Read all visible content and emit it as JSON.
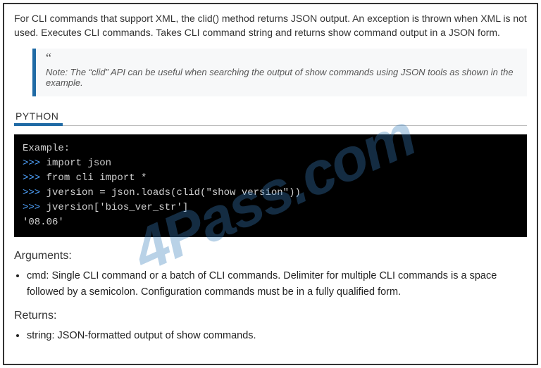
{
  "intro": "For CLI commands that support XML, the clid() method returns JSON output. An exception is thrown when XML is not used. Executes CLI commands. Takes CLI command string and returns show command output in a JSON form.",
  "note": {
    "quote_mark": "“",
    "text": "Note: The “clid” API can be useful when searching the output of show commands using JSON tools as shown in the example."
  },
  "python_label": "PYTHON",
  "code": {
    "line1": "Example:",
    "p2": ">>> ",
    "l2": "import json",
    "p3": ">>> ",
    "l3": "from cli import *",
    "p4": ">>> ",
    "l4": "jversion = json.loads(clid(\"show version\"))",
    "p5": ">>> ",
    "l5": "jversion['bios_ver_str']",
    "l6": "'08.06'"
  },
  "arguments": {
    "heading": "Arguments:",
    "item": "cmd: Single CLI command or a batch of CLI commands. Delimiter for multiple CLI commands is a space followed by a semicolon. Configuration commands must be in a fully qualified form."
  },
  "returns": {
    "heading": "Returns:",
    "item": "string: JSON-formatted output of show commands."
  },
  "watermark": "4Pass.com"
}
